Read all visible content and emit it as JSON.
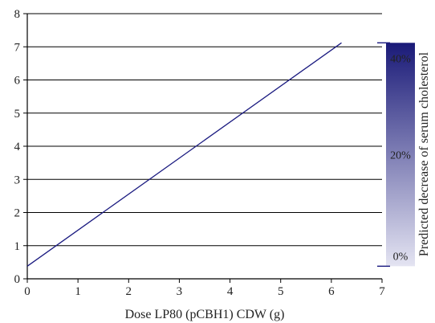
{
  "chart_data": {
    "type": "line",
    "xlabel": "Dose LP80 (pCBH1) CDW (g)",
    "ylabel": "",
    "xlim": [
      0,
      7
    ],
    "ylim": [
      0,
      8
    ],
    "xticks": [
      "0",
      "1",
      "2",
      "3",
      "4",
      "5",
      "6",
      "7"
    ],
    "yticks": [
      "0",
      "1",
      "2",
      "3",
      "4",
      "5",
      "6",
      "7",
      "8"
    ],
    "grid": "horizontal",
    "series": [
      {
        "x": [
          0,
          6.2
        ],
        "y": [
          0.38,
          7.12
        ]
      }
    ],
    "colorbar": {
      "label": "Predicted decrease of serum cholesterol",
      "y_range": [
        0.38,
        7.12
      ],
      "ticks": [
        "0%",
        "20%",
        "40%"
      ],
      "color_low": "#e4e4f2",
      "color_high": "#1a1a78"
    },
    "line_color": "#1a1a80"
  }
}
